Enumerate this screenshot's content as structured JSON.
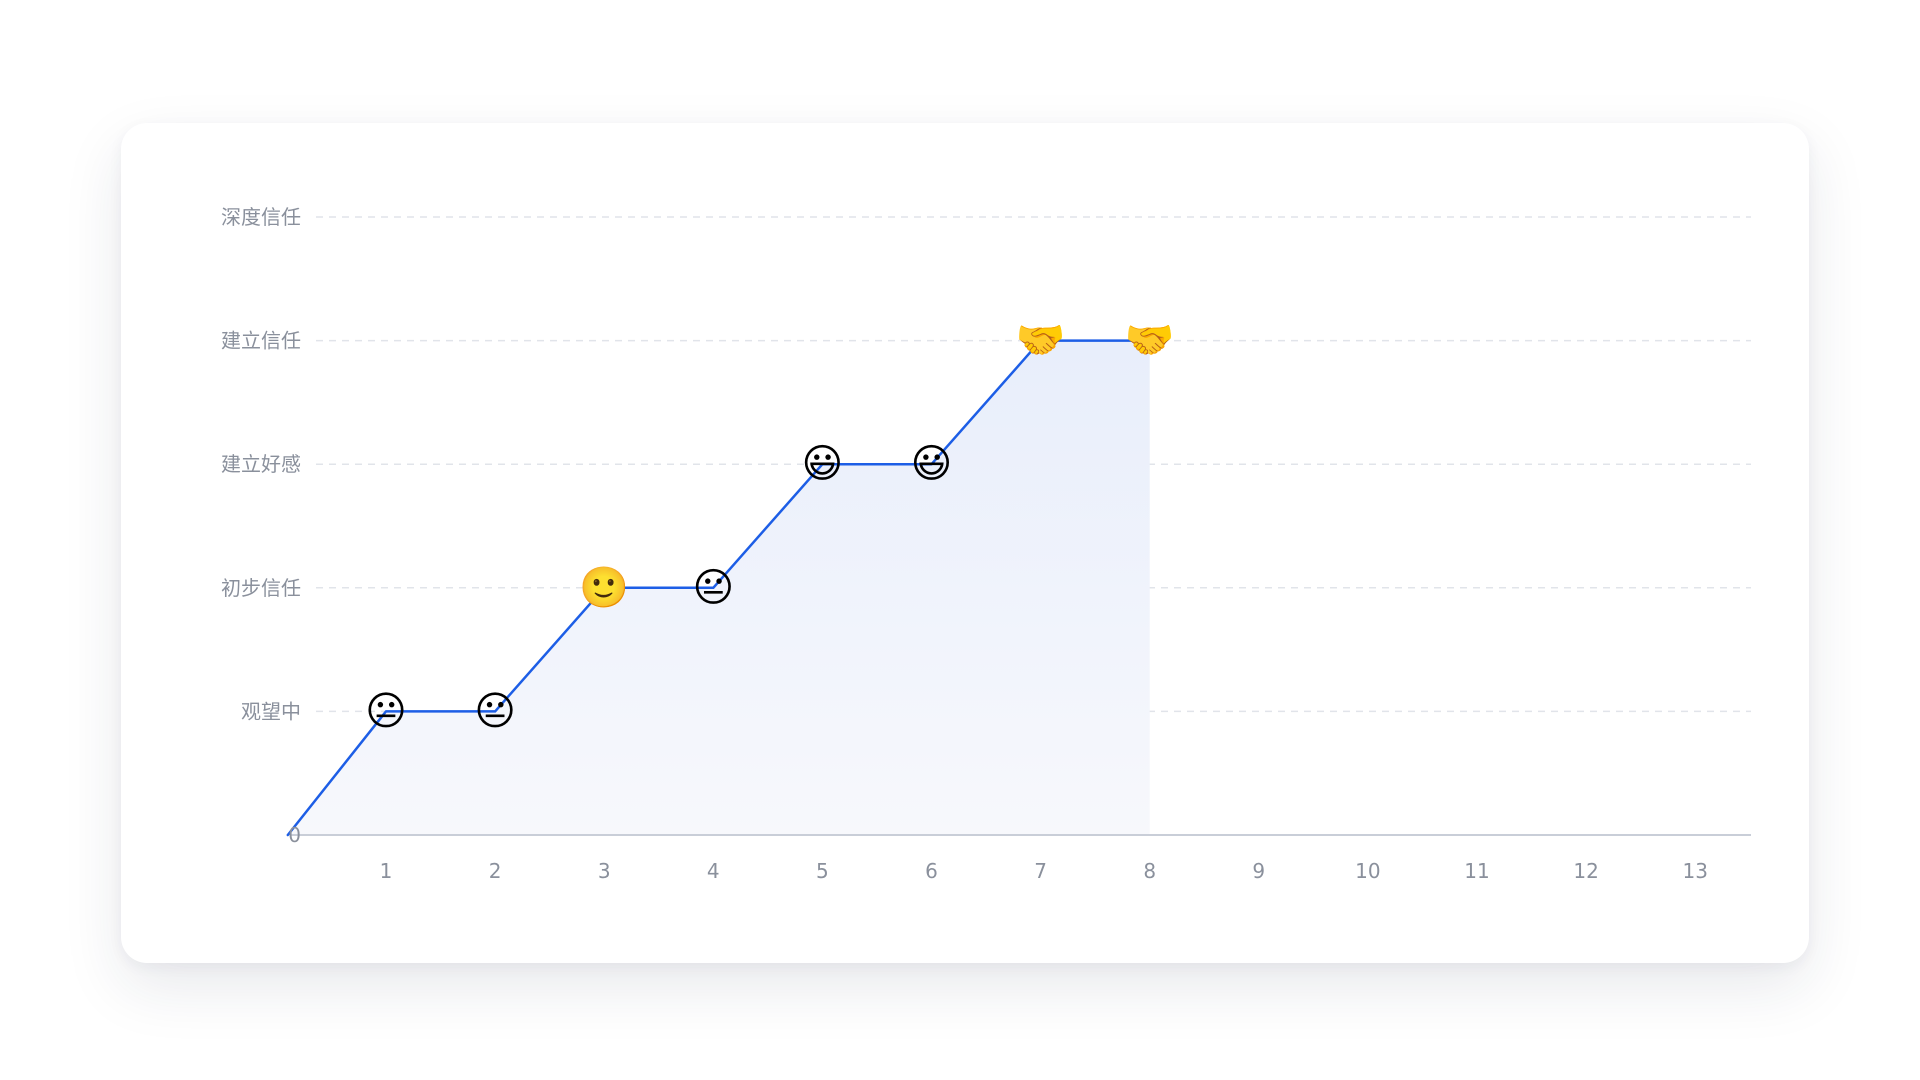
{
  "chart_data": {
    "type": "line",
    "title": "",
    "xlabel": "",
    "ylabel": "",
    "x_ticks": [
      "1",
      "2",
      "3",
      "4",
      "5",
      "6",
      "7",
      "8",
      "9",
      "10",
      "11",
      "12",
      "13"
    ],
    "y_ticks": [
      "0",
      "观望中",
      "初步信任",
      "建立好感",
      "建立信任",
      "深度信任"
    ],
    "xlim": [
      0.1,
      13.5
    ],
    "ylim": [
      0,
      5
    ],
    "grid": true,
    "area_fill": true,
    "series": [
      {
        "points": [
          {
            "x": 0.1,
            "y": 0
          },
          {
            "x": 1,
            "y": 1
          },
          {
            "x": 2,
            "y": 1
          },
          {
            "x": 3,
            "y": 2
          },
          {
            "x": 4,
            "y": 2
          },
          {
            "x": 5,
            "y": 3
          },
          {
            "x": 6,
            "y": 3
          },
          {
            "x": 7,
            "y": 4
          },
          {
            "x": 8,
            "y": 4
          }
        ],
        "markers": [
          {
            "x": 1,
            "y": 1,
            "emoji": "😐"
          },
          {
            "x": 2,
            "y": 1,
            "emoji": "😐"
          },
          {
            "x": 3,
            "y": 2,
            "emoji": "🙂"
          },
          {
            "x": 4,
            "y": 2,
            "emoji": "😐"
          },
          {
            "x": 5,
            "y": 3,
            "emoji": "😃"
          },
          {
            "x": 6,
            "y": 3,
            "emoji": "😃"
          },
          {
            "x": 7,
            "y": 4,
            "emoji": "🤝"
          },
          {
            "x": 8,
            "y": 4,
            "emoji": "🤝"
          }
        ]
      }
    ],
    "colors": {
      "line": "#1d5ee6",
      "area_top": "#e8eefb",
      "area_bottom": "#f7f8fc",
      "grid": "#e1e4ea",
      "axis": "#c9ced8",
      "tick_text": "#8a909c"
    }
  }
}
